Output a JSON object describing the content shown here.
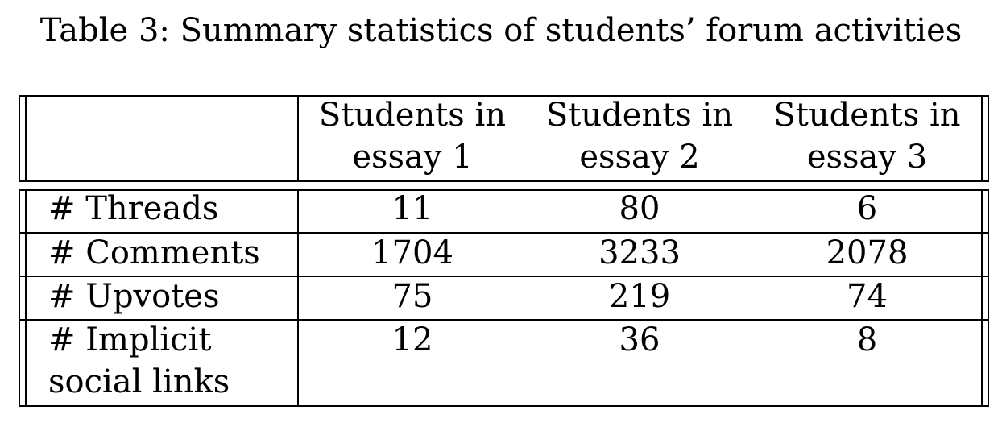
{
  "caption": "Table 3: Summary statistics of students’ forum activities",
  "table": {
    "header": {
      "corner": "",
      "columns": [
        {
          "line1": "Students in",
          "line2": "essay 1"
        },
        {
          "line1": "Students in",
          "line2": "essay 2"
        },
        {
          "line1": "Students in",
          "line2": "essay 3"
        }
      ]
    },
    "rows": [
      {
        "label_line1": "# Threads",
        "label_line2": "",
        "values": [
          "11",
          "80",
          "6"
        ]
      },
      {
        "label_line1": "# Comments",
        "label_line2": "",
        "values": [
          "1704",
          "3233",
          "2078"
        ]
      },
      {
        "label_line1": "# Upvotes",
        "label_line2": "",
        "values": [
          "75",
          "219",
          "74"
        ]
      },
      {
        "label_line1": "# Implicit",
        "label_line2": "social links",
        "values": [
          "12",
          "36",
          "8"
        ]
      }
    ]
  }
}
